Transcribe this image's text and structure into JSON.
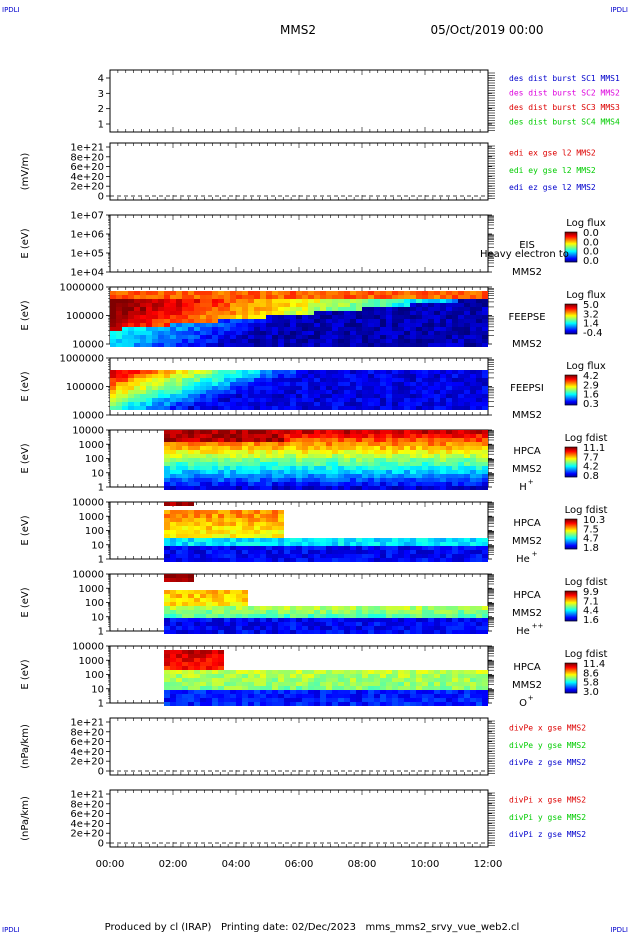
{
  "corners": {
    "top_left": "IPDLI",
    "top_right": "IPDLI",
    "bottom_left": "IPDLI",
    "bottom_right": "IPDLI"
  },
  "header": {
    "title": "MMS2",
    "datetime": "05/Oct/2019 00:00"
  },
  "footer": {
    "text": "Produced by cl (IRAP)   Printing date: 02/Dec/2023   mms_mms2_srvy_vue_web2.cl"
  },
  "time_axis": {
    "ticks": [
      "00:00",
      "02:00",
      "04:00",
      "06:00",
      "08:00",
      "10:00",
      "12:00"
    ],
    "range_hours": [
      0,
      12
    ]
  },
  "colors": {
    "red": "#dd0000",
    "magenta": "#dd00dd",
    "green": "#00cc00",
    "blue": "#0000cc"
  },
  "chart_data": [
    {
      "id": "dist",
      "type": "line",
      "ylabel": "",
      "yticks": [
        "1",
        "2",
        "3",
        "4"
      ],
      "legend": [
        {
          "name": "des dist burst SC1 MMS1",
          "color": "#0000cc"
        },
        {
          "name": "des dist burst SC2 MMS2",
          "color": "#dd00dd"
        },
        {
          "name": "des dist burst SC3 MMS3",
          "color": "#dd0000"
        },
        {
          "name": "des dist burst SC4 MMS4",
          "color": "#00cc00"
        }
      ]
    },
    {
      "id": "edi",
      "type": "line",
      "ylabel": "(mV/m)",
      "yticks": [
        "0",
        "2e+20",
        "4e+20",
        "6e+20",
        "8e+20",
        "1e+21"
      ],
      "legend": [
        {
          "name": "edi ex gse l2 MMS2",
          "color": "#dd0000"
        },
        {
          "name": "edi ey gse l2 MMS2",
          "color": "#00cc00"
        },
        {
          "name": "edi ez gse l2 MMS2",
          "color": "#0000cc"
        }
      ]
    },
    {
      "id": "eis",
      "type": "heatmap",
      "ylabel": "E (eV)",
      "yticks": [
        "1e+04",
        "1e+05",
        "1e+06",
        "1e+07"
      ],
      "instrument": [
        "EIS",
        "MMS2"
      ],
      "overlay": "Heavy electron to",
      "colorbar": {
        "title": "Log flux",
        "ticks": [
          "0.0",
          "0.0",
          "0.0",
          "0.0"
        ]
      }
    },
    {
      "id": "feepse",
      "type": "heatmap",
      "ylabel": "E (eV)",
      "yticks": [
        "10000",
        "100000",
        "1000000"
      ],
      "instrument": [
        "FEEPSE",
        "MMS2"
      ],
      "colorbar": {
        "title": "Log flux",
        "ticks": [
          "5.0",
          "3.2",
          "1.4",
          "-0.4"
        ]
      }
    },
    {
      "id": "feepsi",
      "type": "heatmap",
      "ylabel": "E (eV)",
      "yticks": [
        "10000",
        "100000",
        "1000000"
      ],
      "instrument": [
        "FEEPSI",
        "MMS2"
      ],
      "colorbar": {
        "title": "Log flux",
        "ticks": [
          "4.2",
          "2.9",
          "1.6",
          "0.3"
        ]
      }
    },
    {
      "id": "hpca_h",
      "type": "heatmap",
      "ylabel": "E (eV)",
      "yticks": [
        "1",
        "10",
        "100",
        "1000",
        "10000"
      ],
      "instrument": [
        "HPCA",
        "MMS2"
      ],
      "species": "H",
      "charge": "+",
      "colorbar": {
        "title": "Log fdist",
        "ticks": [
          "11.1",
          "7.7",
          "4.2",
          "0.8"
        ]
      }
    },
    {
      "id": "hpca_he",
      "type": "heatmap",
      "ylabel": "E (eV)",
      "yticks": [
        "1",
        "10",
        "100",
        "1000",
        "10000"
      ],
      "instrument": [
        "HPCA",
        "MMS2"
      ],
      "species": "He",
      "charge": "+",
      "colorbar": {
        "title": "Log fdist",
        "ticks": [
          "10.3",
          "7.5",
          "4.7",
          "1.8"
        ]
      }
    },
    {
      "id": "hpca_hepp",
      "type": "heatmap",
      "ylabel": "E (eV)",
      "yticks": [
        "1",
        "10",
        "100",
        "1000",
        "10000"
      ],
      "instrument": [
        "HPCA",
        "MMS2"
      ],
      "species": "He",
      "charge": "++",
      "colorbar": {
        "title": "Log fdist",
        "ticks": [
          "9.9",
          "7.1",
          "4.4",
          "1.6"
        ]
      }
    },
    {
      "id": "hpca_o",
      "type": "heatmap",
      "ylabel": "E (eV)",
      "yticks": [
        "1",
        "10",
        "100",
        "1000",
        "10000"
      ],
      "instrument": [
        "HPCA",
        "MMS2"
      ],
      "species": "O",
      "charge": "+",
      "colorbar": {
        "title": "Log fdist",
        "ticks": [
          "11.4",
          "8.6",
          "5.8",
          "3.0"
        ]
      }
    },
    {
      "id": "divpe",
      "type": "line",
      "ylabel": "(nPa/km)",
      "yticks": [
        "0",
        "2e+20",
        "4e+20",
        "6e+20",
        "8e+20",
        "1e+21"
      ],
      "legend": [
        {
          "name": "divPe x gse MMS2",
          "color": "#dd0000"
        },
        {
          "name": "divPe y gse MMS2",
          "color": "#00cc00"
        },
        {
          "name": "divPe z gse MMS2",
          "color": "#0000cc"
        }
      ]
    },
    {
      "id": "divpi",
      "type": "line",
      "ylabel": "(nPa/km)",
      "yticks": [
        "0",
        "2e+20",
        "4e+20",
        "6e+20",
        "8e+20",
        "1e+21"
      ],
      "legend": [
        {
          "name": "divPi x gse MMS2",
          "color": "#dd0000"
        },
        {
          "name": "divPi y gse MMS2",
          "color": "#00cc00"
        },
        {
          "name": "divPi z gse MMS2",
          "color": "#0000cc"
        }
      ]
    }
  ]
}
